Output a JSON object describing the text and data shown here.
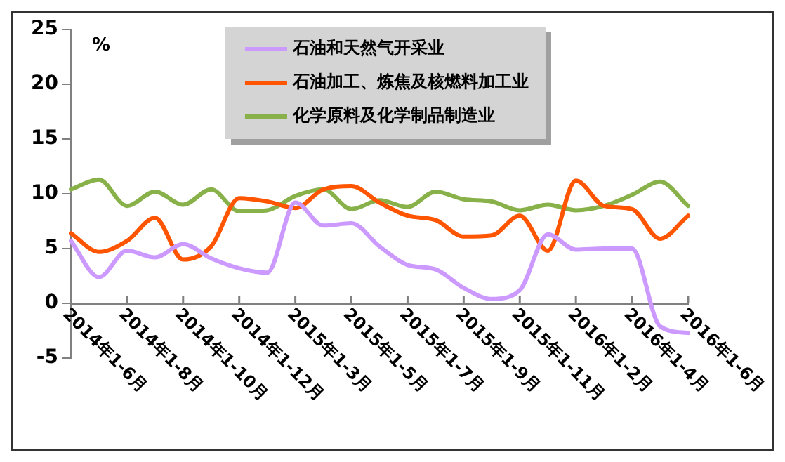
{
  "chart_data": {
    "type": "line",
    "ylabel": "%",
    "categories": [
      "2014年1-6月",
      null,
      "2014年1-8月",
      null,
      "2014年1-10月",
      null,
      "2014年1-12月",
      null,
      "2015年1-3月",
      null,
      "2015年1-5月",
      null,
      "2015年1-7月",
      null,
      "2015年1-9月",
      null,
      "2015年1-11月",
      null,
      "2016年1-2月",
      null,
      "2016年1-4月",
      null,
      "2016年1-6月"
    ],
    "series": [
      {
        "name": "石油和天然气开采业",
        "color": "#cc99ff",
        "values": [
          5.7,
          2.4,
          4.8,
          4.2,
          5.4,
          4.1,
          3.2,
          2.8,
          9.2,
          7.1,
          7.3,
          5.2,
          3.5,
          3.1,
          1.4,
          0.4,
          1.2,
          6.3,
          4.9,
          5.0,
          5.0,
          -2.1,
          -2.7
        ]
      },
      {
        "name": "石油加工、炼焦及核燃料加工业",
        "color": "#ff5500",
        "values": [
          6.4,
          4.7,
          5.7,
          7.8,
          4.0,
          5.2,
          9.6,
          9.3,
          8.7,
          10.4,
          10.7,
          9.2,
          8.0,
          7.6,
          6.1,
          6.2,
          8.0,
          4.8,
          11.2,
          8.9,
          8.6,
          5.9,
          8.0
        ]
      },
      {
        "name": "化学原料及化学制品制造业",
        "color": "#88b14a",
        "values": [
          10.4,
          11.3,
          8.9,
          10.2,
          9.0,
          10.4,
          8.4,
          8.5,
          9.8,
          10.4,
          8.6,
          9.4,
          8.8,
          10.2,
          9.5,
          9.3,
          8.5,
          9.0,
          8.5,
          8.9,
          9.9,
          11.1,
          8.9
        ]
      }
    ],
    "ylim": [
      -5,
      25
    ],
    "yticks": [
      -5,
      0,
      5,
      10,
      15,
      20,
      25
    ],
    "grid": false,
    "legend": "top",
    "marker": "none",
    "line_style": "solid"
  }
}
